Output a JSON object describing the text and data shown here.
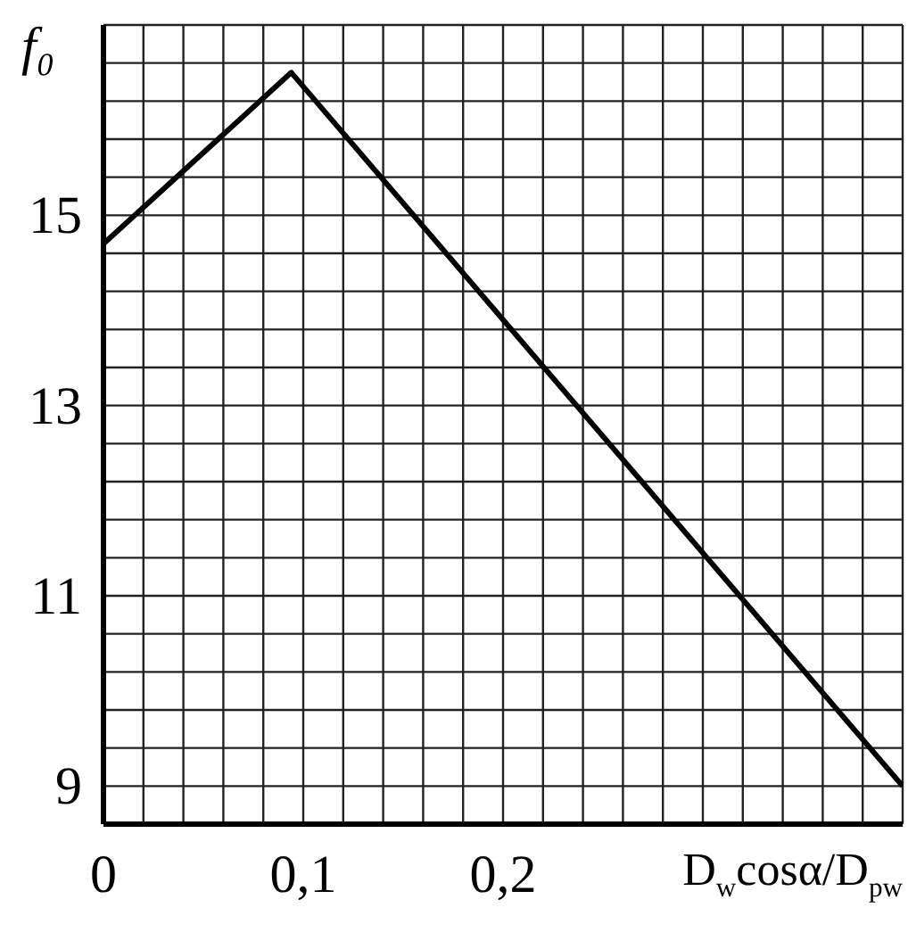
{
  "chart_data": {
    "type": "line",
    "xlabel": "D$_{w}$cosα/D$_{pw}$",
    "ylabel": "f₀",
    "x": [
      0,
      0.094,
      0.4
    ],
    "series": [
      {
        "color": "#000000",
        "values": [
          14.7,
          16.5,
          9.0
        ]
      }
    ],
    "xlim": [
      0,
      0.4
    ],
    "ylim": [
      8.6,
      17
    ],
    "xticks": [
      0,
      {
        "value": 0.02,
        "label": null
      },
      {
        "value": 0.04,
        "label": null
      },
      {
        "value": 0.06,
        "label": null
      },
      {
        "value": 0.08,
        "label": null
      },
      {
        "value": 0.1,
        "label": "0,1"
      },
      {
        "value": 0.12,
        "label": null
      },
      {
        "value": 0.14,
        "label": null
      },
      {
        "value": 0.16,
        "label": null
      },
      {
        "value": 0.18,
        "label": null
      },
      {
        "value": 0.2,
        "label": "0,2"
      },
      {
        "value": 0.22,
        "label": null
      },
      {
        "value": 0.24,
        "label": null
      },
      {
        "value": 0.26,
        "label": null
      },
      {
        "value": 0.28,
        "label": null
      },
      {
        "value": 0.3,
        "label": null
      },
      {
        "value": 0.32,
        "label": null
      },
      {
        "value": 0.34,
        "label": null
      },
      {
        "value": 0.36,
        "label": null
      },
      {
        "value": 0.38,
        "label": null
      },
      {
        "value": 0.4,
        "label": null
      }
    ],
    "yticks": [
      {
        "value": 8.6,
        "label": null
      },
      9,
      {
        "value": 9.4,
        "label": null
      },
      {
        "value": 9.8,
        "label": null
      },
      {
        "value": 10.2,
        "label": null
      },
      {
        "value": 10.6,
        "label": null
      },
      11,
      {
        "value": 11.4,
        "label": null
      },
      {
        "value": 11.8,
        "label": null
      },
      {
        "value": 12.2,
        "label": null
      },
      {
        "value": 12.6,
        "label": null
      },
      13,
      {
        "value": 13.4,
        "label": null
      },
      {
        "value": 13.8,
        "label": null
      },
      {
        "value": 14.2,
        "label": null
      },
      {
        "value": 14.6,
        "label": null
      },
      15,
      {
        "value": 15.4,
        "label": null
      },
      {
        "value": 15.8,
        "label": null
      },
      {
        "value": 16.2,
        "label": null
      },
      {
        "value": 16.6,
        "label": null
      },
      {
        "value": 17,
        "label": null
      }
    ],
    "grid": true
  }
}
